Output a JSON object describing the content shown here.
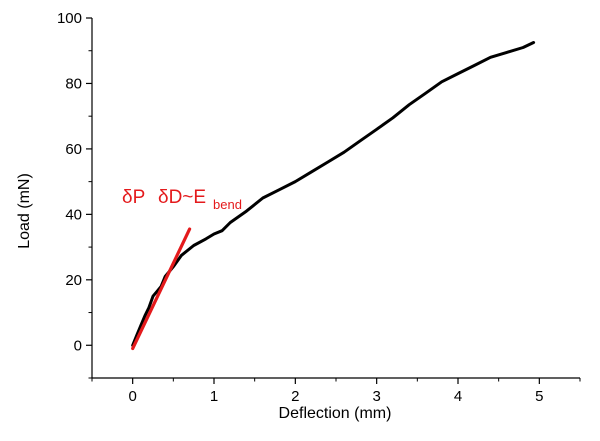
{
  "chart_data": {
    "type": "line",
    "title": "",
    "xlabel": "Deflection (mm)",
    "ylabel": "Load (mN)",
    "xlim": [
      -0.5,
      5.5
    ],
    "ylim": [
      -10,
      100
    ],
    "x_ticks": [
      0,
      1,
      2,
      3,
      4,
      5
    ],
    "y_ticks": [
      0,
      20,
      40,
      60,
      80,
      100
    ],
    "x_tick_labels": [
      "0",
      "1",
      "2",
      "3",
      "4",
      "5"
    ],
    "y_tick_labels": [
      "0",
      "20",
      "40",
      "60",
      "80",
      "100"
    ],
    "grid": false,
    "legend": "none",
    "series": [
      {
        "color": "#000000",
        "x": [
          0,
          0.05,
          0.1,
          0.15,
          0.2,
          0.25,
          0.3,
          0.35,
          0.4,
          0.5,
          0.6,
          0.75,
          0.9,
          1.0,
          1.1,
          1.2,
          1.4,
          1.6,
          1.8,
          2.0,
          2.2,
          2.4,
          2.6,
          2.8,
          3.0,
          3.2,
          3.4,
          3.6,
          3.8,
          4.0,
          4.2,
          4.4,
          4.6,
          4.8,
          4.93
        ],
        "y": [
          0,
          3,
          6,
          9,
          11.5,
          15,
          16.5,
          18,
          21,
          24,
          27.5,
          30.5,
          32.5,
          34,
          35,
          37.5,
          41,
          45,
          47.5,
          50,
          53,
          56,
          59,
          62.5,
          66,
          69.5,
          73.5,
          77,
          80.5,
          83,
          85.5,
          88,
          89.5,
          91,
          92.5
        ]
      },
      {
        "color": "#e41a1c",
        "x": [
          0,
          0.7
        ],
        "y": [
          -1,
          35.5
        ]
      }
    ],
    "annotations": [
      {
        "text_p": "δP",
        "text_d": "δD~E",
        "subscript": "bend",
        "color": "#e41a1c"
      }
    ]
  }
}
